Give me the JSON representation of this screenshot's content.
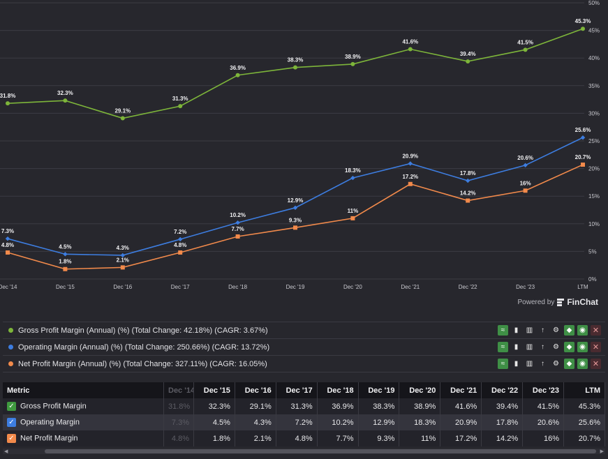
{
  "chart_data": {
    "type": "line",
    "x": [
      "Dec '14",
      "Dec '15",
      "Dec '16",
      "Dec '17",
      "Dec '18",
      "Dec '19",
      "Dec '20",
      "Dec '21",
      "Dec '22",
      "Dec '23",
      "LTM"
    ],
    "ylim": [
      0,
      50
    ],
    "yticks": [
      "0%",
      "5%",
      "10%",
      "15%",
      "20%",
      "25%",
      "30%",
      "35%",
      "40%",
      "45%",
      "50%"
    ],
    "series": [
      {
        "name": "Gross Profit Margin",
        "color": "#7db53a",
        "marker": "circle",
        "values": [
          31.8,
          32.3,
          29.1,
          31.3,
          36.9,
          38.3,
          38.9,
          41.6,
          39.4,
          41.5,
          45.3
        ],
        "labels": [
          "31.8%",
          "32.3%",
          "29.1%",
          "31.3%",
          "36.9%",
          "38.3%",
          "38.9%",
          "41.6%",
          "39.4%",
          "41.5%",
          "45.3%"
        ]
      },
      {
        "name": "Operating Margin",
        "color": "#3d7de0",
        "marker": "diamond",
        "values": [
          7.3,
          4.5,
          4.3,
          7.2,
          10.2,
          12.9,
          18.3,
          20.9,
          17.8,
          20.6,
          25.6
        ],
        "labels": [
          "7.3%",
          "4.5%",
          "4.3%",
          "7.2%",
          "10.2%",
          "12.9%",
          "18.3%",
          "20.9%",
          "17.8%",
          "20.6%",
          "25.6%"
        ]
      },
      {
        "name": "Net Profit Margin",
        "color": "#f28a4b",
        "marker": "square",
        "values": [
          4.8,
          1.8,
          2.1,
          4.8,
          7.7,
          9.3,
          11,
          17.2,
          14.2,
          16,
          20.7
        ],
        "labels": [
          "4.8%",
          "1.8%",
          "2.1%",
          "4.8%",
          "7.7%",
          "9.3%",
          "11%",
          "17.2%",
          "14.2%",
          "16%",
          "20.7%"
        ]
      }
    ]
  },
  "powered": {
    "prefix": "Powered by",
    "brand": "FinChat"
  },
  "legend": [
    {
      "text": "Gross Profit Margin (Annual) (%) (Total Change: 42.18%) (CAGR: 3.67%)",
      "color": "#7db53a"
    },
    {
      "text": "Operating Margin (Annual) (%) (Total Change: 250.66%) (CAGR: 13.72%)",
      "color": "#3d7de0"
    },
    {
      "text": "Net Profit Margin (Annual) (%) (Total Change: 327.11%) (CAGR: 16.05%)",
      "color": "#f28a4b"
    }
  ],
  "tools": [
    "chart-type-icon",
    "bar-chart-icon",
    "stacked-bar-icon",
    "sort-icon",
    "gear-icon",
    "tag-icon",
    "eye-icon",
    "close-icon"
  ],
  "table": {
    "metric_header": "Metric",
    "headers": [
      "Dec '14",
      "Dec '15",
      "Dec '16",
      "Dec '17",
      "Dec '18",
      "Dec '19",
      "Dec '20",
      "Dec '21",
      "Dec '22",
      "Dec '23",
      "LTM"
    ],
    "rows": [
      {
        "name": "Gross Profit Margin",
        "color": "#3f9a3f",
        "values": [
          "31.8%",
          "32.3%",
          "29.1%",
          "31.3%",
          "36.9%",
          "38.3%",
          "38.9%",
          "41.6%",
          "39.4%",
          "41.5%",
          "45.3%"
        ]
      },
      {
        "name": "Operating Margin",
        "color": "#3d7de0",
        "values": [
          "7.3%",
          "4.5%",
          "4.3%",
          "7.2%",
          "10.2%",
          "12.9%",
          "18.3%",
          "20.9%",
          "17.8%",
          "20.6%",
          "25.6%"
        ]
      },
      {
        "name": "Net Profit Margin",
        "color": "#f28a4b",
        "values": [
          "4.8%",
          "1.8%",
          "2.1%",
          "4.8%",
          "7.7%",
          "9.3%",
          "11%",
          "17.2%",
          "14.2%",
          "16%",
          "20.7%"
        ]
      }
    ]
  }
}
